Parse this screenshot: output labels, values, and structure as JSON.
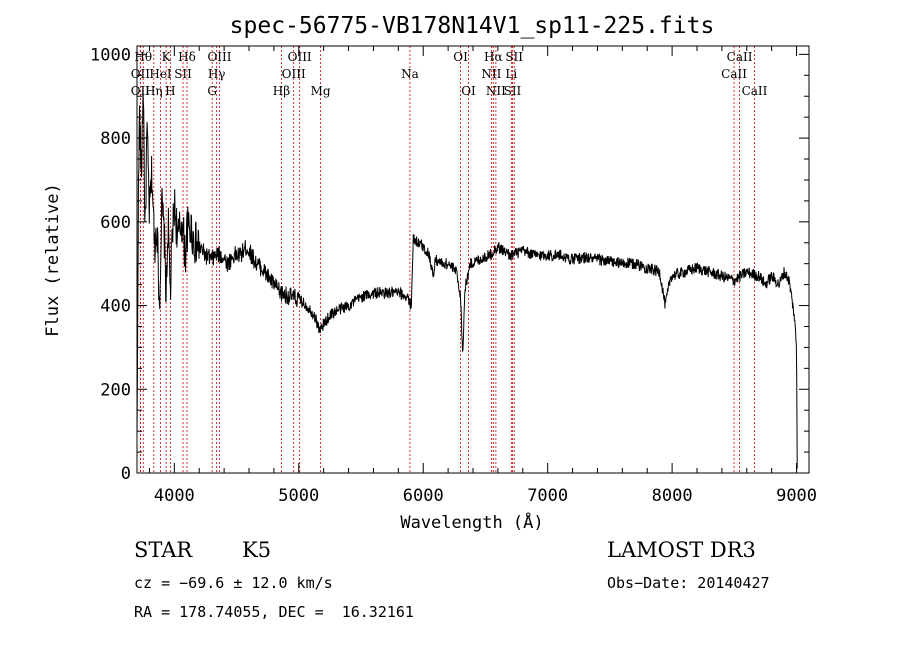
{
  "chart_data": {
    "type": "line",
    "title": "spec-56775-VB178N14V1_sp11-225.fits",
    "xlabel": "Wavelength (Å)",
    "ylabel": "Flux (relative)",
    "xlim": [
      3700,
      9100
    ],
    "ylim": [
      0,
      1020
    ],
    "x_ticks": [
      4000,
      5000,
      6000,
      7000,
      8000,
      9000
    ],
    "y_ticks": [
      0,
      200,
      400,
      600,
      800,
      1000
    ],
    "line_color": "#000000",
    "marker_color": "#cc0000",
    "spectrum_anchors": [
      [
        3700,
        60
      ],
      [
        3710,
        620
      ],
      [
        3720,
        860
      ],
      [
        3735,
        700
      ],
      [
        3750,
        950
      ],
      [
        3765,
        560
      ],
      [
        3780,
        820
      ],
      [
        3800,
        620
      ],
      [
        3820,
        720
      ],
      [
        3840,
        540
      ],
      [
        3860,
        600
      ],
      [
        3880,
        400
      ],
      [
        3900,
        640
      ],
      [
        3920,
        560
      ],
      [
        3935,
        420
      ],
      [
        3950,
        600
      ],
      [
        3968,
        430
      ],
      [
        3985,
        570
      ],
      [
        4000,
        640
      ],
      [
        4030,
        560
      ],
      [
        4060,
        600
      ],
      [
        4090,
        520
      ],
      [
        4100,
        580
      ],
      [
        4130,
        590
      ],
      [
        4160,
        550
      ],
      [
        4200,
        540
      ],
      [
        4250,
        520
      ],
      [
        4300,
        510
      ],
      [
        4340,
        520
      ],
      [
        4380,
        520
      ],
      [
        4430,
        500
      ],
      [
        4480,
        520
      ],
      [
        4530,
        520
      ],
      [
        4580,
        540
      ],
      [
        4620,
        520
      ],
      [
        4660,
        500
      ],
      [
        4700,
        490
      ],
      [
        4750,
        470
      ],
      [
        4800,
        450
      ],
      [
        4850,
        430
      ],
      [
        4900,
        425
      ],
      [
        4950,
        420
      ],
      [
        5000,
        415
      ],
      [
        5060,
        400
      ],
      [
        5120,
        380
      ],
      [
        5170,
        340
      ],
      [
        5210,
        360
      ],
      [
        5260,
        380
      ],
      [
        5320,
        390
      ],
      [
        5400,
        400
      ],
      [
        5500,
        420
      ],
      [
        5600,
        430
      ],
      [
        5700,
        430
      ],
      [
        5800,
        430
      ],
      [
        5880,
        420
      ],
      [
        5892,
        395
      ],
      [
        5905,
        410
      ],
      [
        5920,
        560
      ],
      [
        5960,
        550
      ],
      [
        6000,
        540
      ],
      [
        6050,
        520
      ],
      [
        6080,
        470
      ],
      [
        6100,
        510
      ],
      [
        6150,
        500
      ],
      [
        6200,
        500
      ],
      [
        6270,
        480
      ],
      [
        6300,
        420
      ],
      [
        6318,
        280
      ],
      [
        6335,
        440
      ],
      [
        6380,
        500
      ],
      [
        6450,
        510
      ],
      [
        6530,
        520
      ],
      [
        6563,
        530
      ],
      [
        6600,
        540
      ],
      [
        6650,
        530
      ],
      [
        6700,
        520
      ],
      [
        6800,
        530
      ],
      [
        6900,
        520
      ],
      [
        7000,
        520
      ],
      [
        7100,
        520
      ],
      [
        7200,
        510
      ],
      [
        7300,
        515
      ],
      [
        7400,
        510
      ],
      [
        7500,
        505
      ],
      [
        7600,
        500
      ],
      [
        7700,
        500
      ],
      [
        7800,
        490
      ],
      [
        7900,
        480
      ],
      [
        7945,
        400
      ],
      [
        7990,
        470
      ],
      [
        8100,
        480
      ],
      [
        8200,
        490
      ],
      [
        8300,
        480
      ],
      [
        8400,
        470
      ],
      [
        8500,
        460
      ],
      [
        8600,
        480
      ],
      [
        8700,
        470
      ],
      [
        8750,
        450
      ],
      [
        8800,
        470
      ],
      [
        8860,
        450
      ],
      [
        8900,
        480
      ],
      [
        8940,
        460
      ],
      [
        8980,
        380
      ],
      [
        9000,
        300
      ],
      [
        9005,
        10
      ]
    ],
    "lines": [
      {
        "label": "OII",
        "x": 3727,
        "row": 3
      },
      {
        "label": "Hθ",
        "x": 3750,
        "row": 1
      },
      {
        "label": "OII",
        "x": 3727,
        "row": 2
      },
      {
        "label": "Hη",
        "x": 3835,
        "row": 3
      },
      {
        "label": "HeI",
        "x": 3889,
        "row": 2
      },
      {
        "label": "K",
        "x": 3934,
        "row": 1
      },
      {
        "label": "H",
        "x": 3968,
        "row": 3
      },
      {
        "label": "SII",
        "x": 4070,
        "row": 2
      },
      {
        "label": "Hδ",
        "x": 4102,
        "row": 1
      },
      {
        "label": "G",
        "x": 4304,
        "row": 3
      },
      {
        "label": "Hγ",
        "x": 4340,
        "row": 2
      },
      {
        "label": "OIII",
        "x": 4363,
        "row": 1
      },
      {
        "label": "Hβ",
        "x": 4861,
        "row": 3
      },
      {
        "label": "OIII",
        "x": 4959,
        "row": 2
      },
      {
        "label": "OIII",
        "x": 5007,
        "row": 1
      },
      {
        "label": "Mg",
        "x": 5175,
        "row": 3
      },
      {
        "label": "Na",
        "x": 5893,
        "row": 2
      },
      {
        "label": "OI",
        "x": 6300,
        "row": 1
      },
      {
        "label": "OI",
        "x": 6364,
        "row": 3
      },
      {
        "label": "NII",
        "x": 6548,
        "row": 2
      },
      {
        "label": "Hα",
        "x": 6563,
        "row": 1
      },
      {
        "label": "NII",
        "x": 6584,
        "row": 3
      },
      {
        "label": "Li",
        "x": 6708,
        "row": 2
      },
      {
        "label": "SII",
        "x": 6717,
        "row": 3
      },
      {
        "label": "SII",
        "x": 6731,
        "row": 1
      },
      {
        "label": "CaII",
        "x": 8498,
        "row": 2
      },
      {
        "label": "CaII",
        "x": 8542,
        "row": 1
      },
      {
        "label": "CaII",
        "x": 8662,
        "row": 3
      }
    ]
  },
  "info": {
    "class": "STAR",
    "subclass": "K5",
    "survey": "LAMOST DR3",
    "cz": "cz = −69.6 ± 12.0 km/s",
    "obs_date": "Obs−Date: 20140427",
    "coords": "RA = 178.74055, DEC =  16.32161"
  }
}
